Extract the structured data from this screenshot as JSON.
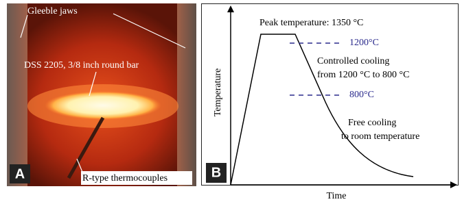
{
  "panel_a": {
    "label": "A",
    "jaws_label": "Gleeble jaws",
    "bar_label": "DSS 2205, 3/8 inch round bar",
    "thermocouple_label": "R-type thermocouples"
  },
  "panel_b": {
    "label": "B",
    "y_axis_label": "Temperature",
    "x_axis_label": "Time",
    "peak_label": "Peak temperature: 1350 °C",
    "upper_mark_label": "1200°C",
    "lower_mark_label": "800°C",
    "controlled_cooling": [
      "Controlled cooling",
      "from 1200 °C to 800 °C"
    ],
    "free_cooling": [
      "Free cooling",
      "to room temperature"
    ]
  }
}
